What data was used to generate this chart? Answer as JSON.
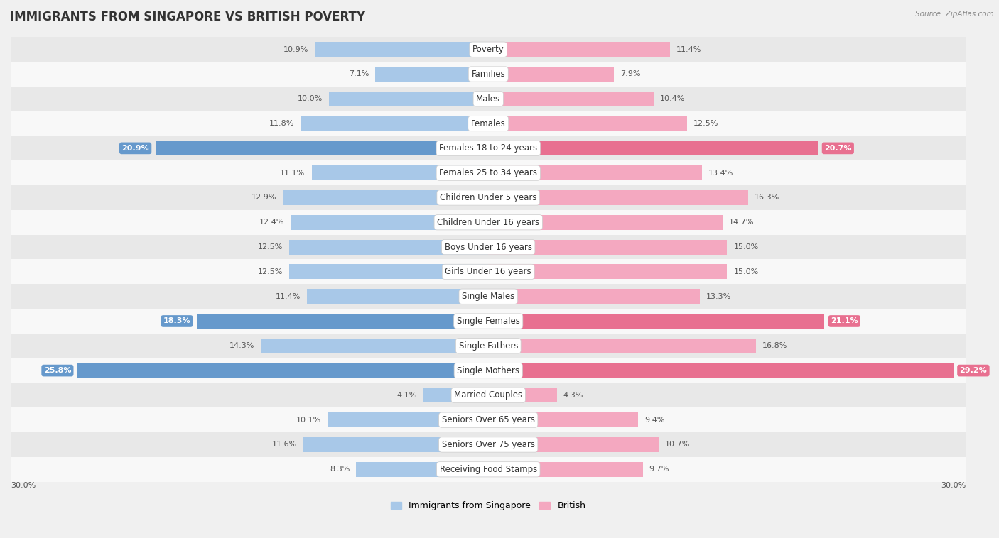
{
  "title": "IMMIGRANTS FROM SINGAPORE VS BRITISH POVERTY",
  "source": "Source: ZipAtlas.com",
  "categories": [
    "Poverty",
    "Families",
    "Males",
    "Females",
    "Females 18 to 24 years",
    "Females 25 to 34 years",
    "Children Under 5 years",
    "Children Under 16 years",
    "Boys Under 16 years",
    "Girls Under 16 years",
    "Single Males",
    "Single Females",
    "Single Fathers",
    "Single Mothers",
    "Married Couples",
    "Seniors Over 65 years",
    "Seniors Over 75 years",
    "Receiving Food Stamps"
  ],
  "left_values": [
    10.9,
    7.1,
    10.0,
    11.8,
    20.9,
    11.1,
    12.9,
    12.4,
    12.5,
    12.5,
    11.4,
    18.3,
    14.3,
    25.8,
    4.1,
    10.1,
    11.6,
    8.3
  ],
  "right_values": [
    11.4,
    7.9,
    10.4,
    12.5,
    20.7,
    13.4,
    16.3,
    14.7,
    15.0,
    15.0,
    13.3,
    21.1,
    16.8,
    29.2,
    4.3,
    9.4,
    10.7,
    9.7
  ],
  "left_label": "Immigrants from Singapore",
  "right_label": "British",
  "left_color": "#a8c8e8",
  "right_color": "#f4a8c0",
  "left_highlight_color": "#6699cc",
  "right_highlight_color": "#e87090",
  "highlight_rows": [
    4,
    11,
    13
  ],
  "max_value": 30.0,
  "background_color": "#f0f0f0",
  "row_bg_even": "#e8e8e8",
  "row_bg_odd": "#f8f8f8",
  "title_fontsize": 12,
  "label_fontsize": 8.5,
  "value_fontsize": 8.0
}
